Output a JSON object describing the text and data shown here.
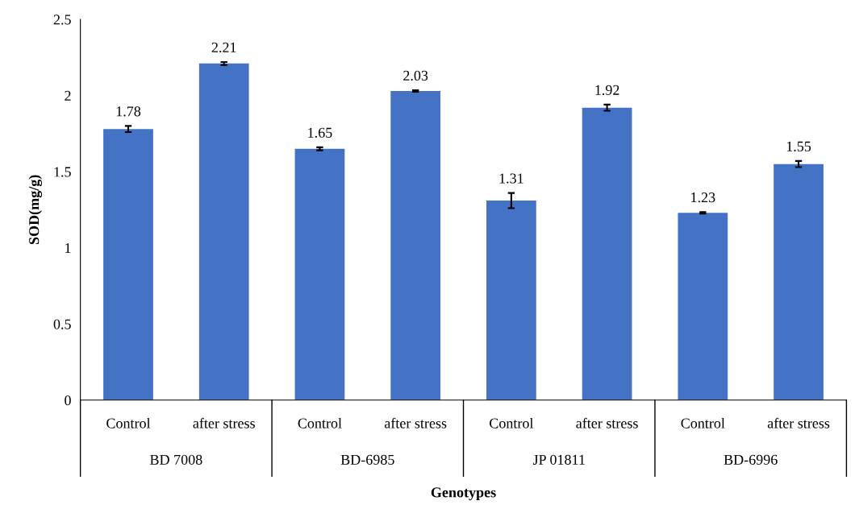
{
  "chart_data": {
    "type": "bar",
    "xlabel": "Genotypes",
    "ylabel": "SOD(mg/g)",
    "categories": [
      "Control",
      "after stress",
      "Control",
      "after stress",
      "Control",
      "after stress",
      "Control",
      "after stress"
    ],
    "values": [
      1.78,
      2.21,
      1.65,
      2.03,
      1.31,
      1.92,
      1.23,
      1.55
    ],
    "errors": [
      0.02,
      0.01,
      0.01,
      0.005,
      0.05,
      0.02,
      0.005,
      0.02
    ],
    "color": "#4472c4",
    "data_labels": true,
    "grid": false,
    "legend": false,
    "ylim": [
      0,
      2.5
    ],
    "yticks": [
      0,
      0.5,
      1,
      1.5,
      2,
      2.5
    ],
    "annotations": [
      "BD 7008",
      "BD-6985",
      "JP 01811",
      "BD-6996"
    ]
  }
}
